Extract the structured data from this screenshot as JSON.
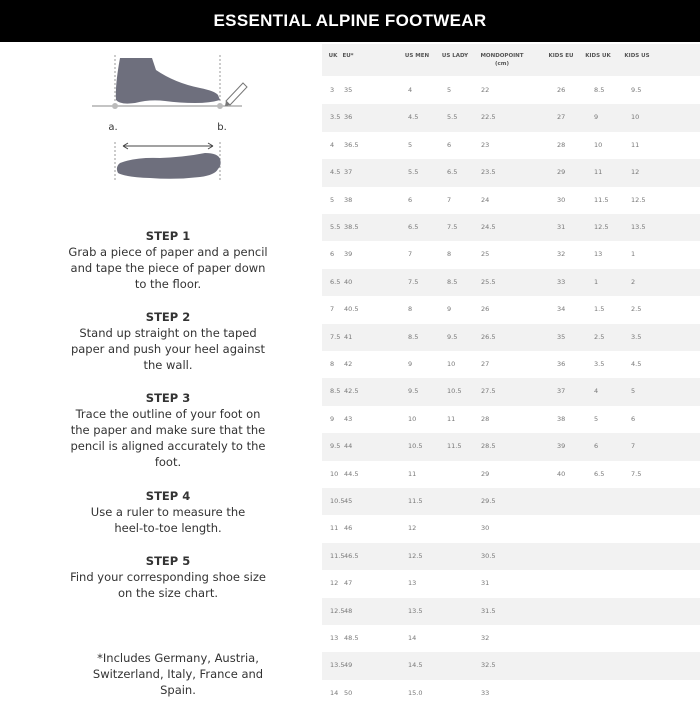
{
  "title": "ESSENTIAL ALPINE FOOTWEAR",
  "illustration": {
    "label_a": "a.",
    "label_b": "b.",
    "foot_color": "#6e6f7d"
  },
  "steps": [
    {
      "title": "STEP 1",
      "lines": [
        "Grab a piece of paper and a pencil",
        "and tape the piece of paper down",
        "to the floor."
      ]
    },
    {
      "title": "STEP 2",
      "lines": [
        "Stand up straight on the taped",
        "paper and push your heel against",
        "the wall."
      ]
    },
    {
      "title": "STEP 3",
      "lines": [
        "Trace the outline of your foot on",
        "the paper and make sure that the",
        "pencil is aligned accurately to the",
        "foot."
      ]
    },
    {
      "title": "STEP 4",
      "lines": [
        "Use a ruler to measure the",
        "heel-to-toe length."
      ]
    },
    {
      "title": "STEP 5",
      "lines": [
        "Find your corresponding shoe size",
        "on the size chart."
      ]
    }
  ],
  "footnote": {
    "lines": [
      "*Includes Germany, Austria,",
      "Switzerland, Italy, France and",
      "Spain."
    ]
  },
  "table": {
    "headers": [
      "UK",
      "EU*",
      "US MEN",
      "US LADY",
      "MONDOPOINT\n(cm)",
      "KIDS EU",
      "KIDS UK",
      "KIDS US"
    ],
    "rows": [
      [
        "3",
        "35",
        "4",
        "5",
        "22",
        "26",
        "8.5",
        "9.5"
      ],
      [
        "3.5",
        "36",
        "4.5",
        "5.5",
        "22.5",
        "27",
        "9",
        "10"
      ],
      [
        "4",
        "36.5",
        "5",
        "6",
        "23",
        "28",
        "10",
        "11"
      ],
      [
        "4.5",
        "37",
        "5.5",
        "6.5",
        "23.5",
        "29",
        "11",
        "12"
      ],
      [
        "5",
        "38",
        "6",
        "7",
        "24",
        "30",
        "11.5",
        "12.5"
      ],
      [
        "5.5",
        "38.5",
        "6.5",
        "7.5",
        "24.5",
        "31",
        "12.5",
        "13.5"
      ],
      [
        "6",
        "39",
        "7",
        "8",
        "25",
        "32",
        "13",
        "1"
      ],
      [
        "6.5",
        "40",
        "7.5",
        "8.5",
        "25.5",
        "33",
        "1",
        "2"
      ],
      [
        "7",
        "40.5",
        "8",
        "9",
        "26",
        "34",
        "1.5",
        "2.5"
      ],
      [
        "7.5",
        "41",
        "8.5",
        "9.5",
        "26.5",
        "35",
        "2.5",
        "3.5"
      ],
      [
        "8",
        "42",
        "9",
        "10",
        "27",
        "36",
        "3.5",
        "4.5"
      ],
      [
        "8.5",
        "42.5",
        "9.5",
        "10.5",
        "27.5",
        "37",
        "4",
        "5"
      ],
      [
        "9",
        "43",
        "10",
        "11",
        "28",
        "38",
        "5",
        "6"
      ],
      [
        "9.5",
        "44",
        "10.5",
        "11.5",
        "28.5",
        "39",
        "6",
        "7"
      ],
      [
        "10",
        "44.5",
        "11",
        "",
        "29",
        "40",
        "6.5",
        "7.5"
      ],
      [
        "10.5",
        "45",
        "11.5",
        "",
        "29.5",
        "",
        "",
        ""
      ],
      [
        "11",
        "46",
        "12",
        "",
        "30",
        "",
        "",
        ""
      ],
      [
        "11.5",
        "46.5",
        "12.5",
        "",
        "30.5",
        "",
        "",
        ""
      ],
      [
        "12",
        "47",
        "13",
        "",
        "31",
        "",
        "",
        ""
      ],
      [
        "12.5",
        "48",
        "13.5",
        "",
        "31.5",
        "",
        "",
        ""
      ],
      [
        "13",
        "48.5",
        "14",
        "",
        "32",
        "",
        "",
        ""
      ],
      [
        "13.5",
        "49",
        "14.5",
        "",
        "32.5",
        "",
        "",
        ""
      ],
      [
        "14",
        "50",
        "15.0",
        "",
        "33",
        "",
        "",
        ""
      ]
    ]
  }
}
